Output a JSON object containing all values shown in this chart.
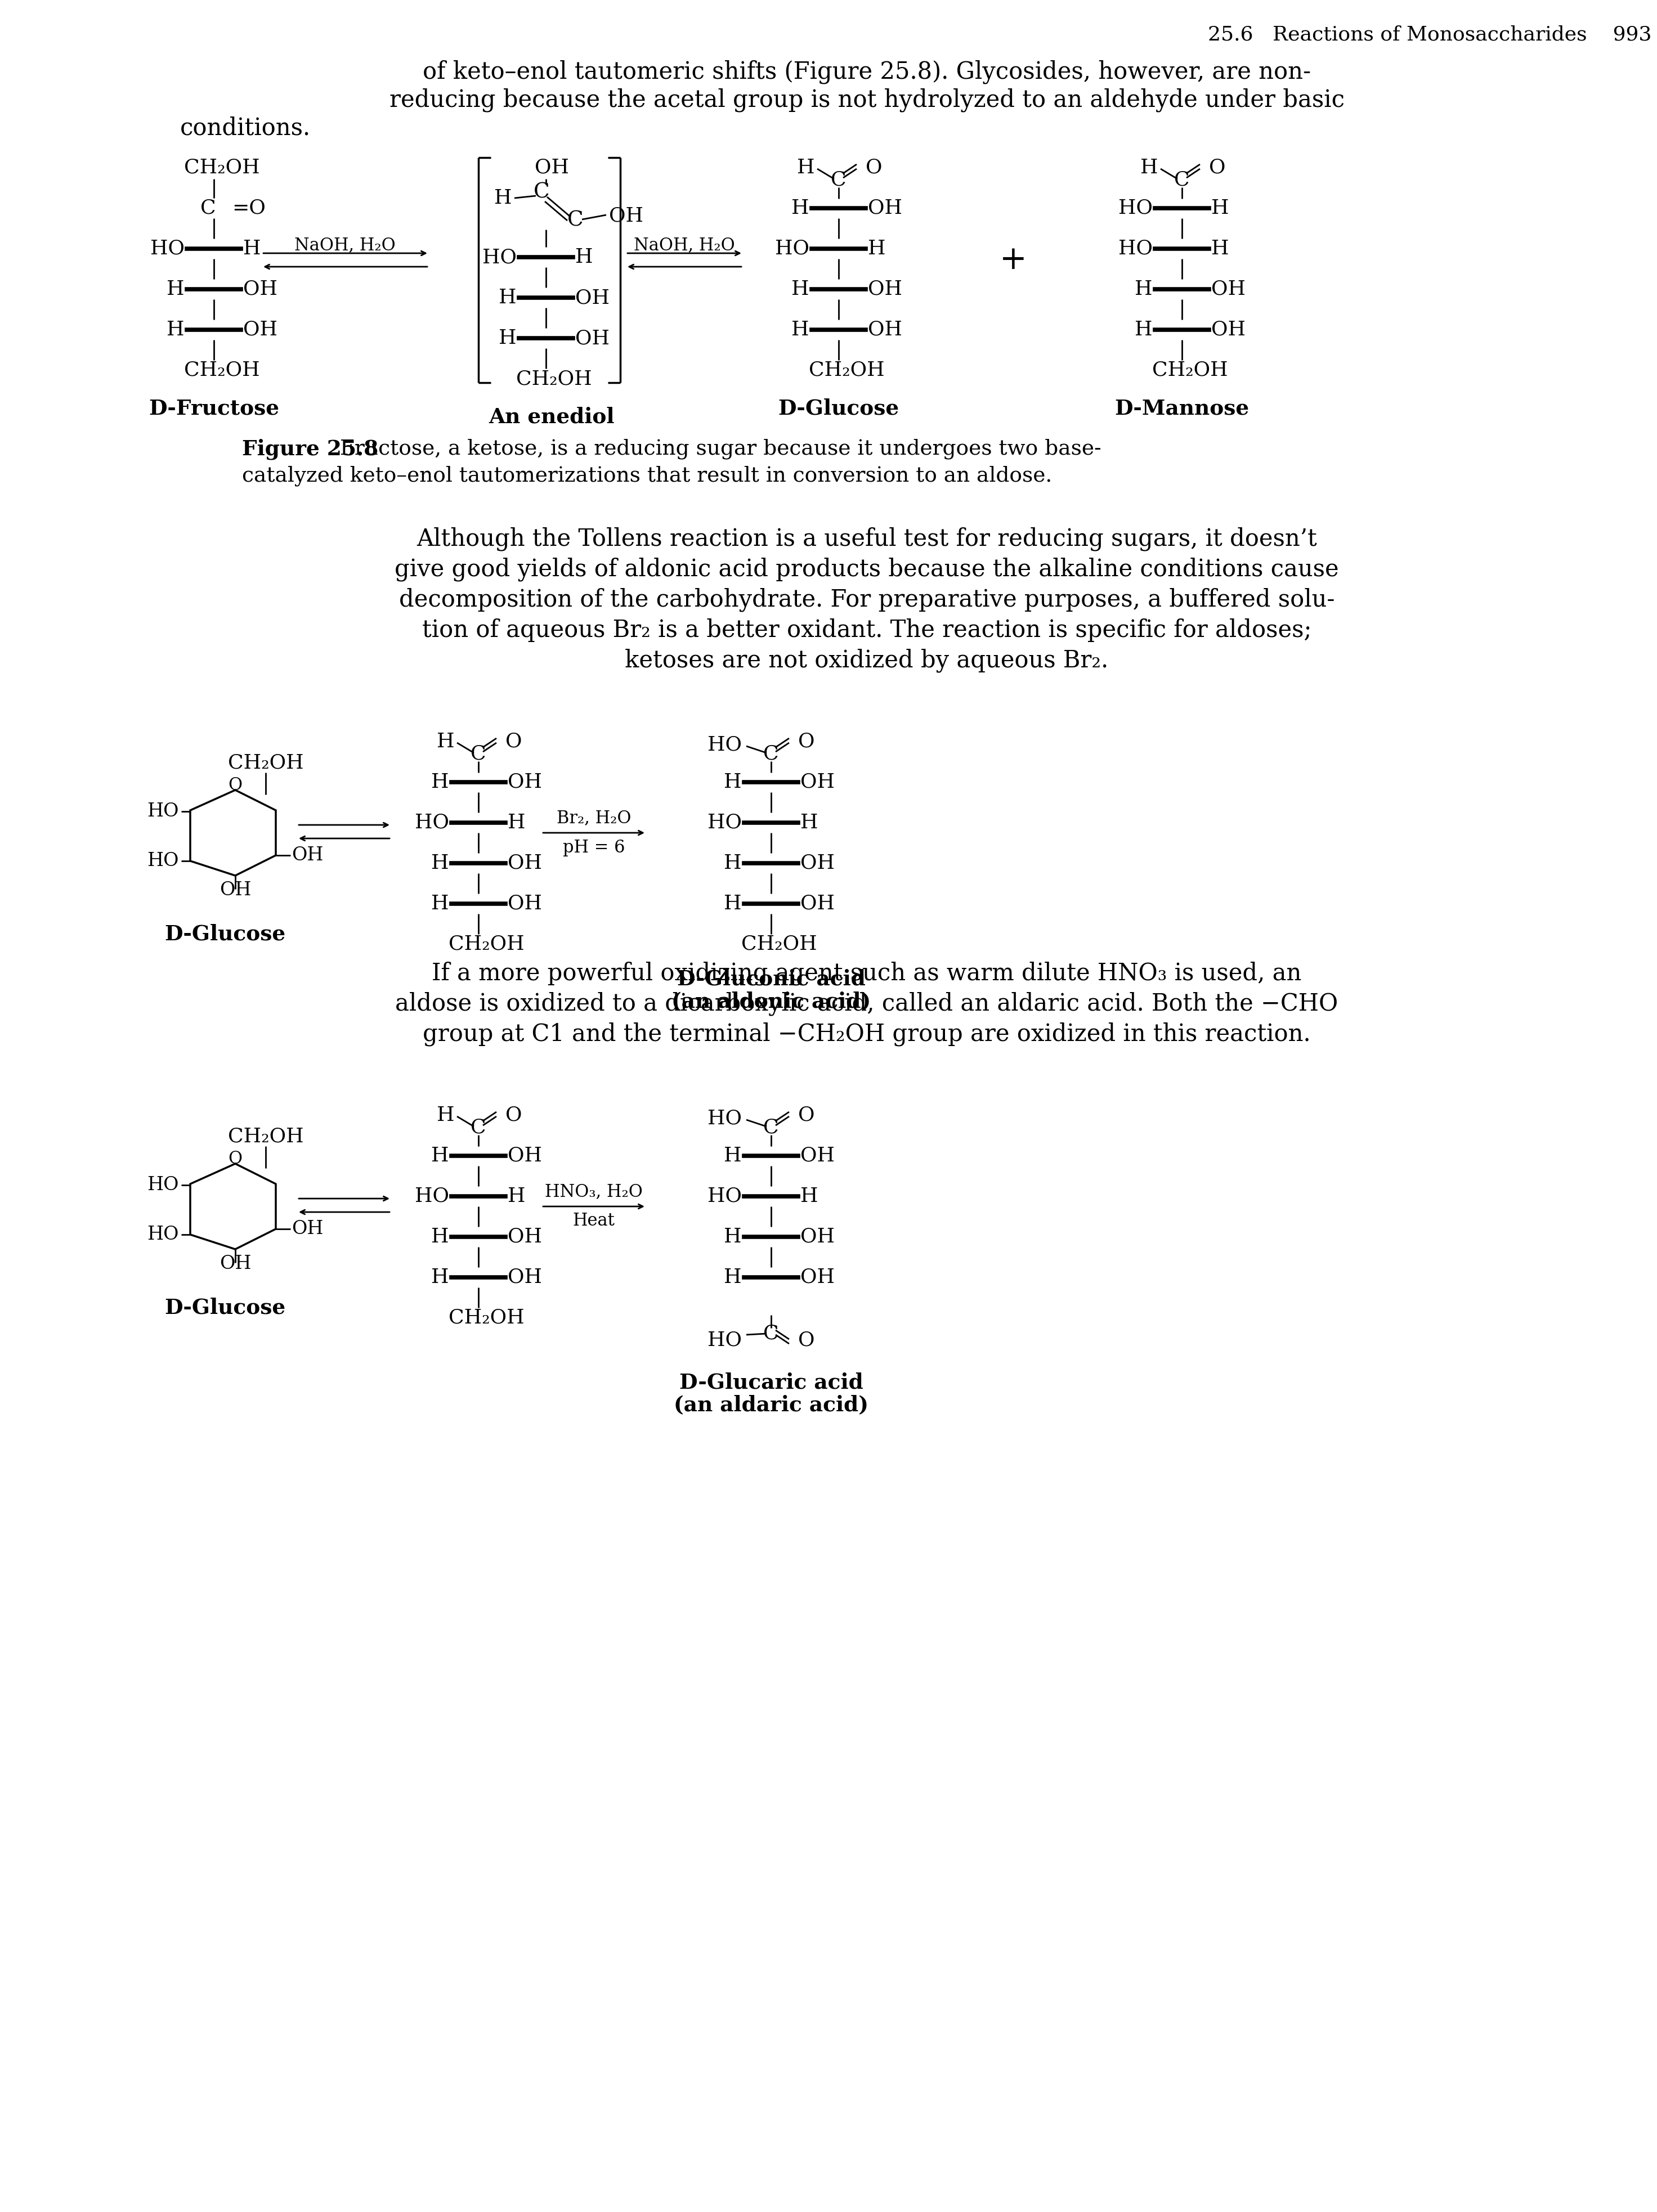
{
  "page_header": "25.6   Reactions of Monosaccharides    993",
  "intro_line1": "of keto–enol tautomeric shifts (Figure 25.8). Glycosides, however, are non-",
  "intro_line2": "reducing because the acetal group is not hydrolyzed to an aldehyde under basic",
  "intro_line3": "conditions.",
  "fig_caption_bold": "Figure 25.8",
  "fig_caption_rest": " Fructose, a ketose, is a reducing sugar because it undergoes two base-",
  "fig_caption_line2": "catalyzed keto–enol tautomerizations that result in conversion to an aldose.",
  "para2_lines": [
    "Although the Tollens reaction is a useful test for reducing sugars, it doesn’t",
    "give good yields of aldonic acid products because the alkaline conditions cause",
    "decomposition of the carbohydrate. For preparative purposes, a buffered solu-",
    "tion of aqueous Br₂ is a better oxidant. The reaction is specific for aldoses;",
    "ketoses are not oxidized by aqueous Br₂."
  ],
  "para3_lines": [
    "If a more powerful oxidizing agent such as warm dilute HNO₃ is used, an",
    "aldose is oxidized to a dicarboxylic acid, called an aldaric acid. Both the −CHO",
    "group at C1 and the terminal −CH₂OH group are oxidized in this reaction."
  ],
  "background": "#ffffff"
}
